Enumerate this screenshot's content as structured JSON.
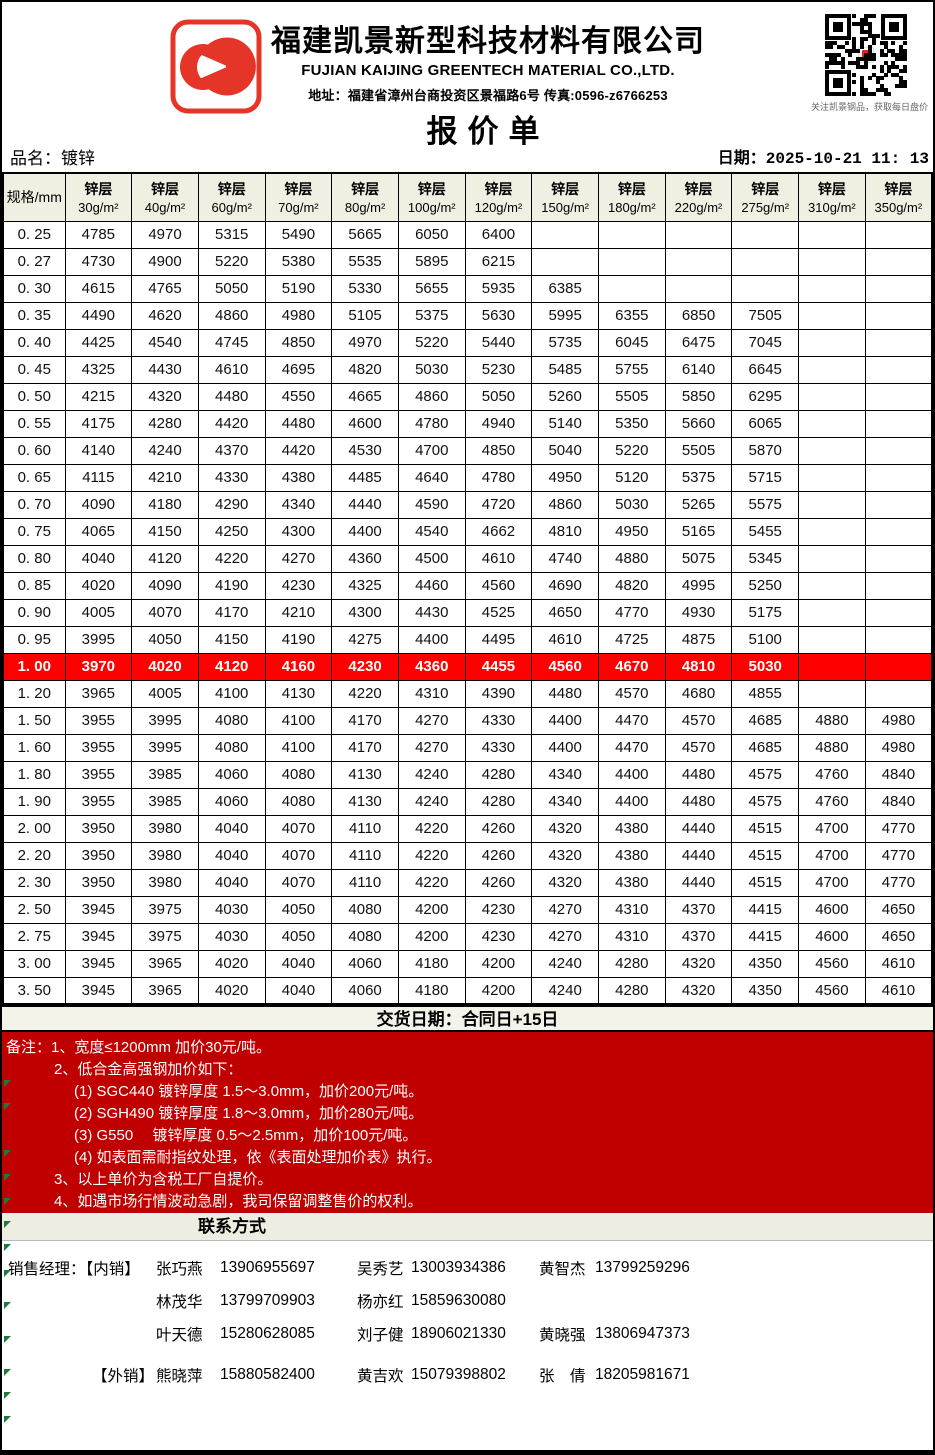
{
  "header": {
    "company_cn": "福建凯景新型科技材料有限公司",
    "company_en": "FUJIAN KAIJING GREENTECH MATERIAL CO.,LTD.",
    "address": "地址：福建省漳州台商投资区景福路6号 传真:0596-z6766253",
    "doc_title": "报价单",
    "qr_caption": "关注凯景钢品，获取每日盘价",
    "logo_color": "#E53528"
  },
  "meta": {
    "product": "品名：镀锌",
    "date": "日期：2025-10-21 11: 13"
  },
  "table": {
    "spec_header": "规格/mm",
    "coating_label": "锌层",
    "coatings": [
      "30g/m²",
      "40g/m²",
      "60g/m²",
      "70g/m²",
      "80g/m²",
      "100g/m²",
      "120g/m²",
      "150g/m²",
      "180g/m²",
      "220g/m²",
      "275g/m²",
      "310g/m²",
      "350g/m²"
    ],
    "highlight_color": "#FE0000",
    "rows": [
      {
        "spec": "0. 25",
        "highlight": false,
        "values": [
          "4785",
          "4970",
          "5315",
          "5490",
          "5665",
          "6050",
          "6400",
          "",
          "",
          "",
          "",
          "",
          ""
        ]
      },
      {
        "spec": "0. 27",
        "highlight": false,
        "values": [
          "4730",
          "4900",
          "5220",
          "5380",
          "5535",
          "5895",
          "6215",
          "",
          "",
          "",
          "",
          "",
          ""
        ]
      },
      {
        "spec": "0. 30",
        "highlight": false,
        "values": [
          "4615",
          "4765",
          "5050",
          "5190",
          "5330",
          "5655",
          "5935",
          "6385",
          "",
          "",
          "",
          "",
          ""
        ]
      },
      {
        "spec": "0. 35",
        "highlight": false,
        "values": [
          "4490",
          "4620",
          "4860",
          "4980",
          "5105",
          "5375",
          "5630",
          "5995",
          "6355",
          "6850",
          "7505",
          "",
          ""
        ]
      },
      {
        "spec": "0. 40",
        "highlight": false,
        "values": [
          "4425",
          "4540",
          "4745",
          "4850",
          "4970",
          "5220",
          "5440",
          "5735",
          "6045",
          "6475",
          "7045",
          "",
          ""
        ]
      },
      {
        "spec": "0. 45",
        "highlight": false,
        "values": [
          "4325",
          "4430",
          "4610",
          "4695",
          "4820",
          "5030",
          "5230",
          "5485",
          "5755",
          "6140",
          "6645",
          "",
          ""
        ]
      },
      {
        "spec": "0. 50",
        "highlight": false,
        "values": [
          "4215",
          "4320",
          "4480",
          "4550",
          "4665",
          "4860",
          "5050",
          "5260",
          "5505",
          "5850",
          "6295",
          "",
          ""
        ]
      },
      {
        "spec": "0. 55",
        "highlight": false,
        "values": [
          "4175",
          "4280",
          "4420",
          "4480",
          "4600",
          "4780",
          "4940",
          "5140",
          "5350",
          "5660",
          "6065",
          "",
          ""
        ]
      },
      {
        "spec": "0. 60",
        "highlight": false,
        "values": [
          "4140",
          "4240",
          "4370",
          "4420",
          "4530",
          "4700",
          "4850",
          "5040",
          "5220",
          "5505",
          "5870",
          "",
          ""
        ]
      },
      {
        "spec": "0. 65",
        "highlight": false,
        "values": [
          "4115",
          "4210",
          "4330",
          "4380",
          "4485",
          "4640",
          "4780",
          "4950",
          "5120",
          "5375",
          "5715",
          "",
          ""
        ]
      },
      {
        "spec": "0. 70",
        "highlight": false,
        "values": [
          "4090",
          "4180",
          "4290",
          "4340",
          "4440",
          "4590",
          "4720",
          "4860",
          "5030",
          "5265",
          "5575",
          "",
          ""
        ]
      },
      {
        "spec": "0. 75",
        "highlight": false,
        "values": [
          "4065",
          "4150",
          "4250",
          "4300",
          "4400",
          "4540",
          "4662",
          "4810",
          "4950",
          "5165",
          "5455",
          "",
          ""
        ]
      },
      {
        "spec": "0. 80",
        "highlight": false,
        "values": [
          "4040",
          "4120",
          "4220",
          "4270",
          "4360",
          "4500",
          "4610",
          "4740",
          "4880",
          "5075",
          "5345",
          "",
          ""
        ]
      },
      {
        "spec": "0. 85",
        "highlight": false,
        "values": [
          "4020",
          "4090",
          "4190",
          "4230",
          "4325",
          "4460",
          "4560",
          "4690",
          "4820",
          "4995",
          "5250",
          "",
          ""
        ]
      },
      {
        "spec": "0. 90",
        "highlight": false,
        "values": [
          "4005",
          "4070",
          "4170",
          "4210",
          "4300",
          "4430",
          "4525",
          "4650",
          "4770",
          "4930",
          "5175",
          "",
          ""
        ]
      },
      {
        "spec": "0. 95",
        "highlight": false,
        "values": [
          "3995",
          "4050",
          "4150",
          "4190",
          "4275",
          "4400",
          "4495",
          "4610",
          "4725",
          "4875",
          "5100",
          "",
          ""
        ]
      },
      {
        "spec": "1. 00",
        "highlight": true,
        "values": [
          "3970",
          "4020",
          "4120",
          "4160",
          "4230",
          "4360",
          "4455",
          "4560",
          "4670",
          "4810",
          "5030",
          "",
          ""
        ]
      },
      {
        "spec": "1. 20",
        "highlight": false,
        "values": [
          "3965",
          "4005",
          "4100",
          "4130",
          "4220",
          "4310",
          "4390",
          "4480",
          "4570",
          "4680",
          "4855",
          "",
          ""
        ]
      },
      {
        "spec": "1. 50",
        "highlight": false,
        "values": [
          "3955",
          "3995",
          "4080",
          "4100",
          "4170",
          "4270",
          "4330",
          "4400",
          "4470",
          "4570",
          "4685",
          "4880",
          "4980"
        ]
      },
      {
        "spec": "1. 60",
        "highlight": false,
        "values": [
          "3955",
          "3995",
          "4080",
          "4100",
          "4170",
          "4270",
          "4330",
          "4400",
          "4470",
          "4570",
          "4685",
          "4880",
          "4980"
        ]
      },
      {
        "spec": "1. 80",
        "highlight": false,
        "values": [
          "3955",
          "3985",
          "4060",
          "4080",
          "4130",
          "4240",
          "4280",
          "4340",
          "4400",
          "4480",
          "4575",
          "4760",
          "4840"
        ]
      },
      {
        "spec": "1. 90",
        "highlight": false,
        "values": [
          "3955",
          "3985",
          "4060",
          "4080",
          "4130",
          "4240",
          "4280",
          "4340",
          "4400",
          "4480",
          "4575",
          "4760",
          "4840"
        ]
      },
      {
        "spec": "2. 00",
        "highlight": false,
        "values": [
          "3950",
          "3980",
          "4040",
          "4070",
          "4110",
          "4220",
          "4260",
          "4320",
          "4380",
          "4440",
          "4515",
          "4700",
          "4770"
        ]
      },
      {
        "spec": "2. 20",
        "highlight": false,
        "values": [
          "3950",
          "3980",
          "4040",
          "4070",
          "4110",
          "4220",
          "4260",
          "4320",
          "4380",
          "4440",
          "4515",
          "4700",
          "4770"
        ]
      },
      {
        "spec": "2. 30",
        "highlight": false,
        "values": [
          "3950",
          "3980",
          "4040",
          "4070",
          "4110",
          "4220",
          "4260",
          "4320",
          "4380",
          "4440",
          "4515",
          "4700",
          "4770"
        ]
      },
      {
        "spec": "2. 50",
        "highlight": false,
        "values": [
          "3945",
          "3975",
          "4030",
          "4050",
          "4080",
          "4200",
          "4230",
          "4270",
          "4310",
          "4370",
          "4415",
          "4600",
          "4650"
        ]
      },
      {
        "spec": "2. 75",
        "highlight": false,
        "values": [
          "3945",
          "3975",
          "4030",
          "4050",
          "4080",
          "4200",
          "4230",
          "4270",
          "4310",
          "4370",
          "4415",
          "4600",
          "4650"
        ]
      },
      {
        "spec": "3. 00",
        "highlight": false,
        "values": [
          "3945",
          "3965",
          "4020",
          "4040",
          "4060",
          "4180",
          "4200",
          "4240",
          "4280",
          "4320",
          "4350",
          "4560",
          "4610"
        ]
      },
      {
        "spec": "3. 50",
        "highlight": false,
        "values": [
          "3945",
          "3965",
          "4020",
          "4040",
          "4060",
          "4180",
          "4200",
          "4240",
          "4280",
          "4320",
          "4350",
          "4560",
          "4610"
        ]
      }
    ]
  },
  "delivery": {
    "text": "交货日期：合同日+15日"
  },
  "notes": {
    "background": "#C00000",
    "lines": [
      {
        "text": "备注：1、宽度≤1200mm 加价30元/吨。",
        "indent": 0
      },
      {
        "text": "2、低合金高强钢加价如下：",
        "indent": 1
      },
      {
        "text": "(1) SGC440 镀锌厚度 1.5～3.0mm，加价200元/吨。",
        "indent": 2
      },
      {
        "text": "(2) SGH490 镀锌厚度 1.8～3.0mm，加价280元/吨。",
        "indent": 2
      },
      {
        "text": "(3) G550　 镀锌厚度 0.5～2.5mm，加价100元/吨。",
        "indent": 2
      },
      {
        "text": "(4) 如表面需耐指纹处理，依《表面处理加价表》执行。",
        "indent": 2
      },
      {
        "text": "3、以上单价为含税工厂自提价。",
        "indent": 1
      },
      {
        "text": "4、如遇市场行情波动急剧，我司保留调整售价的权利。",
        "indent": 1
      }
    ]
  },
  "contacts": {
    "title": "联系方式",
    "rows": [
      {
        "export": false,
        "cells": [
          "销售经理：【内销】",
          "张巧燕",
          "13906955697",
          "吴秀艺",
          "13003934386",
          "黄智杰",
          "13799259296"
        ]
      },
      {
        "export": false,
        "cells": [
          "",
          "林茂华",
          "13799709903",
          "杨亦红",
          "15859630080",
          "",
          ""
        ]
      },
      {
        "export": false,
        "cells": [
          "",
          "叶天德",
          "15280628085",
          "刘子健",
          "18906021330",
          "黄晓强",
          "13806947373"
        ]
      },
      {
        "export": true,
        "cells": [
          "【外销】",
          "熊晓萍",
          "15880582400",
          "黄吉欢",
          "15079398802",
          "张　倩",
          "18205981671"
        ]
      }
    ]
  }
}
